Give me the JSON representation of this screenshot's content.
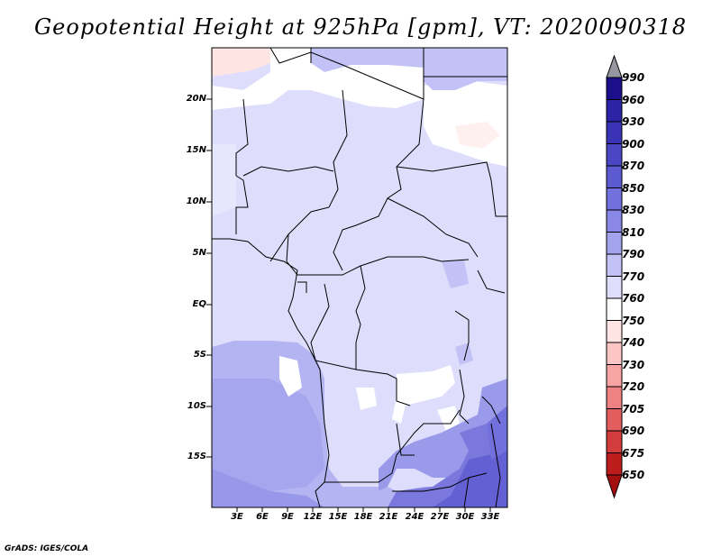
{
  "title": "Geopotential Height at 925hPa [gpm], VT: 2020090318",
  "credit": "GrADS: IGES/COLA",
  "map": {
    "lat_ticks": [
      "20N",
      "15N",
      "10N",
      "5N",
      "EQ",
      "5S",
      "10S",
      "15S"
    ],
    "lon_ticks": [
      "3E",
      "6E",
      "9E",
      "12E",
      "15E",
      "18E",
      "21E",
      "24E",
      "27E",
      "30E",
      "33E"
    ],
    "lon_range_deg": [
      0,
      35
    ],
    "lat_range_deg": [
      -20,
      24.5
    ],
    "field": "Geopotential Height at 925hPa",
    "units": "gpm"
  },
  "colorbar": {
    "levels": [
      "990",
      "960",
      "930",
      "900",
      "870",
      "850",
      "830",
      "810",
      "790",
      "770",
      "760",
      "750",
      "740",
      "730",
      "720",
      "705",
      "690",
      "675",
      "650"
    ],
    "colors": [
      "#9696a0",
      "#1c0f8c",
      "#2c22a6",
      "#3a33b8",
      "#4a46c4",
      "#5c5ad0",
      "#7270dc",
      "#8a88e6",
      "#a4a4ee",
      "#c2c2f6",
      "#dedefc",
      "#ffffff",
      "#ffe4e4",
      "#fcc6c6",
      "#f6a4a4",
      "#ee8282",
      "#e25e5e",
      "#d23c3c",
      "#bc1c1c",
      "#a41010"
    ]
  }
}
